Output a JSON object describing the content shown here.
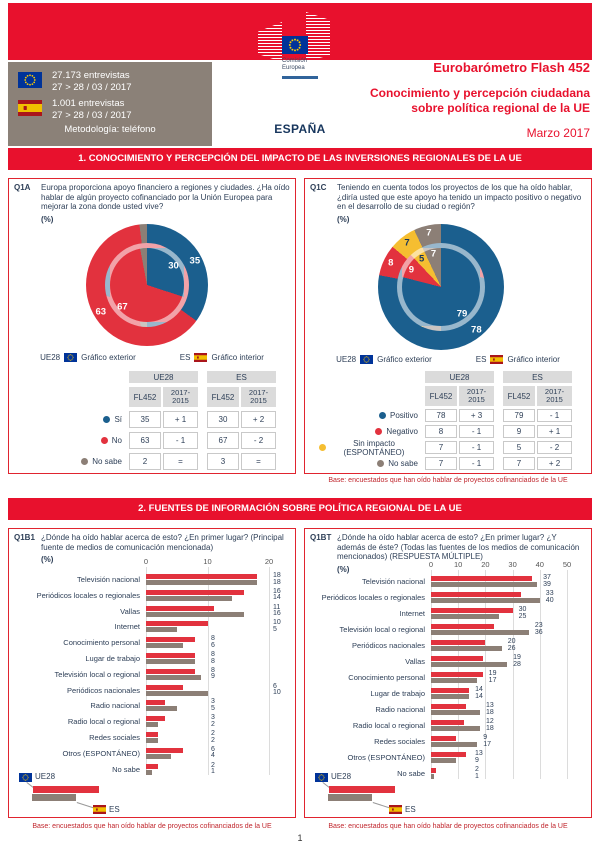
{
  "colors": {
    "band_red": "#E8112D",
    "chart_blue": "#1B5F8E",
    "chart_red": "#E2323E",
    "chart_gray": "#8C7F76",
    "chart_yellow": "#F5BE31",
    "navy_text": "#2F4058",
    "title_navy": "#17365D",
    "base_note_red": "#C0262D"
  },
  "header": {
    "logo_line1": "Comisión",
    "logo_line2": "Europea",
    "eu_interviews": "27.173 entrevistas",
    "eu_dates": "27 > 28 / 03 / 2017",
    "es_interviews": "1.001 entrevistas",
    "es_dates": "27 > 28 / 03 / 2017",
    "methodology": "Metodología: teléfono",
    "survey": "Eurobarómetro Flash 452",
    "title_line1": "Conocimiento y percepción ciudadana",
    "title_line2": "sobre política regional de la UE",
    "country": "ESPAÑA",
    "date": "Marzo 2017"
  },
  "sections": {
    "s1": "1. CONOCIMIENTO Y PERCEPCIÓN DEL IMPACTO DE LAS INVERSIONES REGIONALES DE LA UE",
    "s2": "2. FUENTES DE INFORMACIÓN SOBRE POLÍTICA REGIONAL DE LA UE"
  },
  "pie_legend": {
    "eu": "UE28",
    "es": "ES",
    "outer": "Gráfico exterior",
    "inner": "Gráfico interior"
  },
  "bar_legend": {
    "eu": "UE28",
    "es": "ES"
  },
  "table_headers": {
    "group_eu": "UE28",
    "group_es": "ES",
    "wave": "FL452",
    "diff_line1": "2017-",
    "diff_line2": "2015"
  },
  "q1a": {
    "code": "Q1A",
    "question": "Europa proporciona apoyo financiero a regiones y ciudades. ¿Ha oído hablar de algún proyecto cofinanciado por la Unión Europea para mejorar la zona donde usted vive?",
    "unit": "(%)",
    "table_rows": [
      {
        "label": "Sí",
        "dot": "#1B5F8E",
        "eu": "35",
        "eu_diff": "+ 1",
        "es": "30",
        "es_diff": "+ 2"
      },
      {
        "label": "No",
        "dot": "#E2323E",
        "eu": "63",
        "eu_diff": "- 1",
        "es": "67",
        "es_diff": "- 2"
      },
      {
        "label": "No sabe",
        "dot": "#8C7F76",
        "eu": "2",
        "eu_diff": "=",
        "es": "3",
        "es_diff": "="
      }
    ]
  },
  "q1c": {
    "code": "Q1C",
    "question": "Teniendo en cuenta todos los proyectos de los que ha oído hablar, ¿diría usted que este apoyo ha tenido un impacto positivo o negativo en el desarrollo de su ciudad o región?",
    "unit": "(%)",
    "table_rows": [
      {
        "label": "Positivo",
        "dot": "#1B5F8E",
        "eu": "78",
        "eu_diff": "+ 3",
        "es": "79",
        "es_diff": "- 1"
      },
      {
        "label": "Negativo",
        "dot": "#E2323E",
        "eu": "8",
        "eu_diff": "- 1",
        "es": "9",
        "es_diff": "+ 1"
      },
      {
        "label": "Sin impacto (ESPONTÁNEO)",
        "dot": "#F5BE31",
        "eu": "7",
        "eu_diff": "- 1",
        "es": "5",
        "es_diff": "- 2"
      },
      {
        "label": "No sabe",
        "dot": "#8C7F76",
        "eu": "7",
        "eu_diff": "- 1",
        "es": "7",
        "es_diff": "+ 2"
      }
    ]
  },
  "q1b1": {
    "code": "Q1B1",
    "question": "¿Dónde ha oído hablar acerca de esto? ¿En primer lugar? (Principal fuente de medios de comunicación mencionada)",
    "unit": "(%)"
  },
  "q1bt": {
    "code": "Q1BT",
    "question": "¿Dónde ha oído hablar acerca de esto? ¿En primer lugar? ¿Y además de éste? (Todas las fuentes de los medios de comunicación mencionados) (RESPUESTA MÚLTIPLE)",
    "unit": "(%)"
  },
  "footer": {
    "base": "Base: encuestados que han oído hablar de proyectos cofinanciados de la UE",
    "page": "1"
  },
  "chart_data": [
    {
      "id": "q1a",
      "type": "pie",
      "title": "Q1A - Proyectos cofinanciados por la UE en su zona (%)",
      "categories": [
        "Sí",
        "No",
        "No sabe"
      ],
      "colors": [
        "#1B5F8E",
        "#E2323E",
        "#8C7F76"
      ],
      "series": [
        {
          "name": "UE28 (gráfico exterior)",
          "values": [
            35,
            63,
            2
          ]
        },
        {
          "name": "ES (gráfico interior)",
          "values": [
            30,
            67,
            3
          ]
        }
      ]
    },
    {
      "id": "q1c",
      "type": "pie",
      "title": "Q1C - Impacto del apoyo de la UE (%)",
      "categories": [
        "Positivo",
        "Negativo",
        "Sin impacto (ESPONTÁNEO)",
        "No sabe"
      ],
      "colors": [
        "#1B5F8E",
        "#E2323E",
        "#F5BE31",
        "#8C7F76"
      ],
      "series": [
        {
          "name": "UE28 (gráfico exterior)",
          "values": [
            78,
            8,
            7,
            7
          ]
        },
        {
          "name": "ES (gráfico interior)",
          "values": [
            79,
            9,
            5,
            7
          ]
        }
      ]
    },
    {
      "id": "q1b1",
      "type": "bar",
      "orientation": "horizontal",
      "title": "Q1B1 - Principal fuente mencionada (%)",
      "xlim": [
        0,
        20
      ],
      "ticks": [
        0,
        10,
        20
      ],
      "categories": [
        "Televisión nacional",
        "Periódicos locales o regionales",
        "Vallas",
        "Internet",
        "Conocimiento personal",
        "Lugar de trabajo",
        "Televisión local o regional",
        "Periódicos nacionales",
        "Radio nacional",
        "Radio local o regional",
        "Redes sociales",
        "Otros (ESPONTÁNEO)",
        "No sabe"
      ],
      "series": [
        {
          "name": "UE28",
          "color": "#E2323E",
          "values": [
            18,
            16,
            11,
            10,
            8,
            8,
            8,
            6,
            3,
            3,
            2,
            6,
            2
          ]
        },
        {
          "name": "ES",
          "color": "#8C7F76",
          "values": [
            18,
            14,
            16,
            5,
            6,
            8,
            9,
            10,
            5,
            2,
            2,
            4,
            1
          ]
        }
      ]
    },
    {
      "id": "q1bt",
      "type": "bar",
      "orientation": "horizontal",
      "title": "Q1BT - Todas las fuentes mencionadas (%)",
      "xlim": [
        0,
        50
      ],
      "ticks": [
        0,
        10,
        20,
        30,
        40,
        50
      ],
      "categories": [
        "Televisión nacional",
        "Periódicos locales o regionales",
        "Internet",
        "Televisión local o regional",
        "Periódicos nacionales",
        "Vallas",
        "Conocimiento personal",
        "Lugar de trabajo",
        "Radio nacional",
        "Radio local o regional",
        "Redes sociales",
        "Otros (ESPONTÁNEO)",
        "No sabe"
      ],
      "series": [
        {
          "name": "UE28",
          "color": "#E2323E",
          "values": [
            37,
            33,
            30,
            23,
            20,
            19,
            19,
            14,
            13,
            12,
            9,
            13,
            2
          ]
        },
        {
          "name": "ES",
          "color": "#8C7F76",
          "values": [
            39,
            40,
            25,
            36,
            26,
            28,
            17,
            14,
            18,
            18,
            17,
            9,
            1
          ]
        }
      ]
    }
  ]
}
